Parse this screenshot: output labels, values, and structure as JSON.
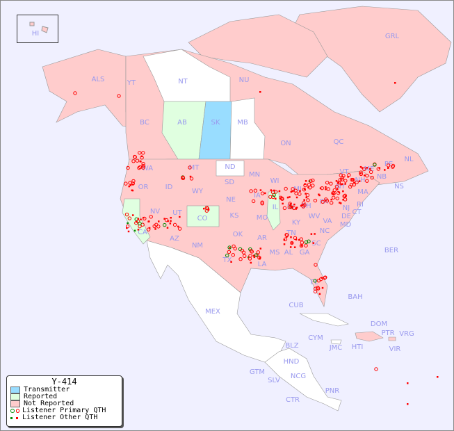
{
  "legend": {
    "title": "Y-414",
    "items": [
      {
        "label": "Transmitter",
        "color": "#99ddff"
      },
      {
        "label": "Reported",
        "color": "#e0ffe0"
      },
      {
        "label": "Not Reported",
        "color": "#ffcccc"
      },
      {
        "label": "Listener Primary QTH",
        "colors": [
          "#008800",
          "#ff0000"
        ]
      },
      {
        "label": "Listener Other QTH",
        "colors": [
          "#008800",
          "#ff0000"
        ]
      }
    ]
  },
  "colors": {
    "background": "#f0f0ff",
    "not_reported": "#ffcccc",
    "reported": "#e0ffe0",
    "transmitter": "#99ddff",
    "label": "#9999ee",
    "marker": "#ff0000"
  },
  "regions": {
    "HI": "HI",
    "ALS": "ALS",
    "YT": "YT",
    "NT": "NT",
    "NU": "NU",
    "GRL": "GRL",
    "BC": "BC",
    "AB": "AB",
    "SK": "SK",
    "MB": "MB",
    "ON": "ON",
    "QC": "QC",
    "NL": "NL",
    "NS": "NS",
    "NB": "NB",
    "PE": "PE",
    "WA": "WA",
    "OR": "OR",
    "CA": "CA",
    "NV": "NV",
    "ID": "ID",
    "MT": "MT",
    "WY": "WY",
    "UT": "UT",
    "AZ": "AZ",
    "CO": "CO",
    "NM": "NM",
    "ND": "ND",
    "SD": "SD",
    "NE": "NE",
    "KS": "KS",
    "OK": "OK",
    "TX": "TX",
    "MN": "MN",
    "IA": "IA",
    "MO": "MO",
    "AR": "AR",
    "LA": "LA",
    "WI": "WI",
    "IL": "IL",
    "MI": "MI",
    "IN": "IN",
    "OH": "OH",
    "KY": "KY",
    "TN": "TN",
    "MS": "MS",
    "AL": "AL",
    "GA": "GA",
    "FL": "FL",
    "SC": "SC",
    "NC": "NC",
    "VA": "VA",
    "WV": "WV",
    "PA": "PA",
    "NY": "NY",
    "VT": "VT",
    "NH": "NH",
    "ME": "ME",
    "MA": "MA",
    "CT": "CT",
    "RI": "RI",
    "NJ": "NJ",
    "DE": "DE",
    "MD": "MD",
    "MEX": "MEX",
    "CUB": "CUB",
    "BAH": "BAH",
    "BER": "BER",
    "DOM": "DOM",
    "PTR": "PTR",
    "VRG": "VRG",
    "VIR": "VIR",
    "HTI": "HTI",
    "JMC": "JMC",
    "CYM": "CYM",
    "BLZ": "BLZ",
    "HND": "HND",
    "GTM": "GTM",
    "SLV": "SLV",
    "NCG": "NCG",
    "CTR": "CTR",
    "PNR": "PNR"
  }
}
